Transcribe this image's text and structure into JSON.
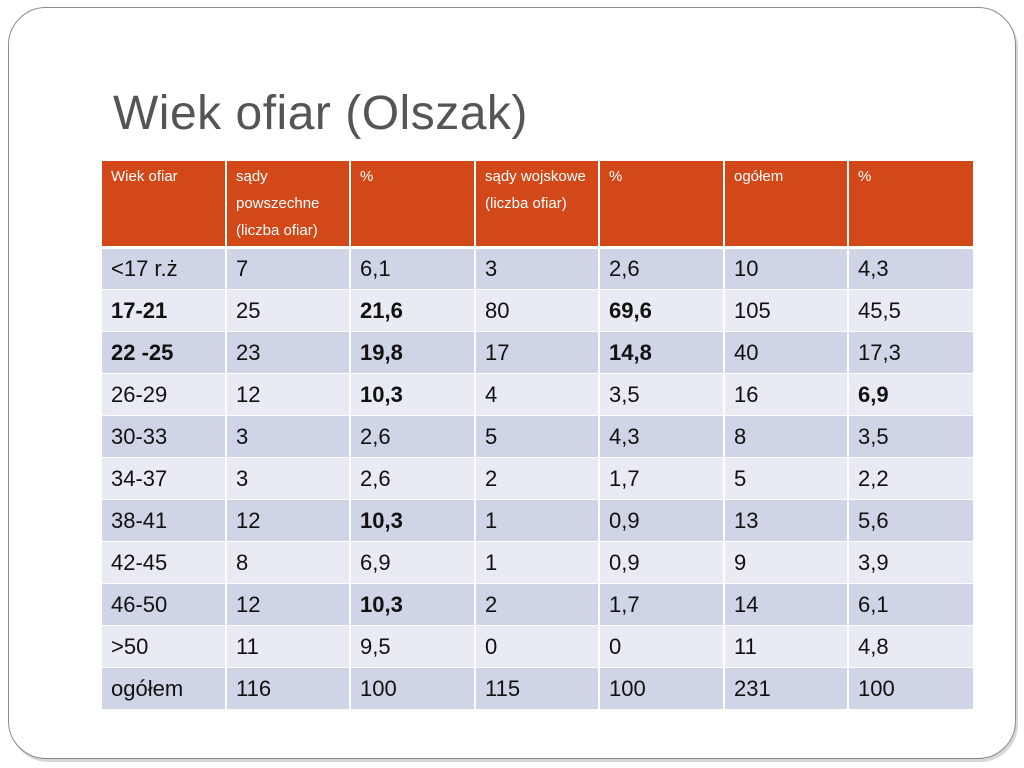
{
  "title": "Wiek ofiar (Olszak)",
  "table": {
    "headers": [
      "Wiek ofiar",
      "sądy powszechne (liczba ofiar)",
      "%",
      "sądy wojskowe (liczba ofiar)",
      "%",
      "ogółem",
      "%"
    ],
    "rows": [
      [
        "<17 r.ż",
        "7",
        "6,1",
        "3",
        "2,6",
        "10",
        "4,3"
      ],
      [
        "17-21",
        "25",
        "21,6",
        "80",
        "69,6",
        "105",
        "45,5"
      ],
      [
        "22 -25",
        "23",
        "19,8",
        "17",
        "14,8",
        "40",
        "17,3"
      ],
      [
        "26-29",
        "12",
        "10,3",
        "4",
        "3,5",
        "16",
        "6,9"
      ],
      [
        "30-33",
        "3",
        "2,6",
        "5",
        "4,3",
        "8",
        "3,5"
      ],
      [
        "34-37",
        "3",
        "2,6",
        "2",
        "1,7",
        "5",
        "2,2"
      ],
      [
        "38-41",
        "12",
        "10,3",
        "1",
        "0,9",
        "13",
        "5,6"
      ],
      [
        "42-45",
        "8",
        "6,9",
        "1",
        "0,9",
        "9",
        "3,9"
      ],
      [
        "46-50",
        "12",
        "10,3",
        "2",
        "1,7",
        "14",
        "6,1"
      ],
      [
        ">50",
        "11",
        "9,5",
        "0",
        "0",
        "11",
        "4,8"
      ],
      [
        "ogółem",
        "116",
        "100",
        "115",
        "100",
        "231",
        "100"
      ]
    ],
    "bold_cells": [
      [
        1,
        0
      ],
      [
        1,
        2
      ],
      [
        1,
        4
      ],
      [
        2,
        0
      ],
      [
        2,
        2
      ],
      [
        2,
        4
      ],
      [
        3,
        2
      ],
      [
        3,
        6
      ],
      [
        6,
        2
      ],
      [
        8,
        2
      ]
    ]
  },
  "colors": {
    "header_bg": "#d24818",
    "row_odd_bg": "#cfd5e7",
    "row_even_bg": "#e8ebf4",
    "title_color": "#555555"
  }
}
